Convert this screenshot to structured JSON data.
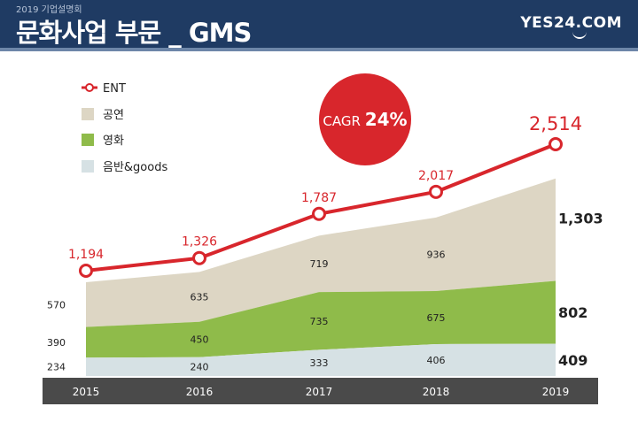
{
  "header": {
    "subtitle": "2019 기업설명회",
    "title": "문화사업 부문 _ GMS",
    "logo_text": "YES24.COM"
  },
  "colors": {
    "header_bg": "#1f3b63",
    "ent_line": "#d8262c",
    "performance": "#ddd6c4",
    "movie": "#8fbb4a",
    "music_goods": "#d6e1e4",
    "axis_bar": "#4a4a4a"
  },
  "chart_data": {
    "type": "area",
    "x": [
      "2015",
      "2016",
      "2017",
      "2018",
      "2019"
    ],
    "series": [
      {
        "name": "음반&goods",
        "values": [
          234,
          240,
          333,
          406,
          409
        ]
      },
      {
        "name": "영화",
        "values": [
          390,
          450,
          735,
          675,
          802
        ]
      },
      {
        "name": "공연",
        "values": [
          570,
          635,
          719,
          936,
          1303
        ]
      }
    ],
    "line_series": {
      "name": "ENT",
      "values": [
        1194,
        1326,
        1787,
        2017,
        2514
      ]
    },
    "value_labels": {
      "music_goods": [
        "234",
        "240",
        "333",
        "406",
        "409"
      ],
      "movie": [
        "390",
        "450",
        "735",
        "675",
        "802"
      ],
      "performance": [
        "570",
        "635",
        "719",
        "936",
        "1,303"
      ],
      "ent": [
        "1,194",
        "1,326",
        "1,787",
        "2,017",
        "2,514"
      ]
    },
    "annotation": {
      "prefix": "CAGR",
      "value": "24%"
    },
    "legend": [
      "ENT",
      "공연",
      "영화",
      "음반&goods"
    ],
    "legend_position": "top-left",
    "grid": false
  }
}
